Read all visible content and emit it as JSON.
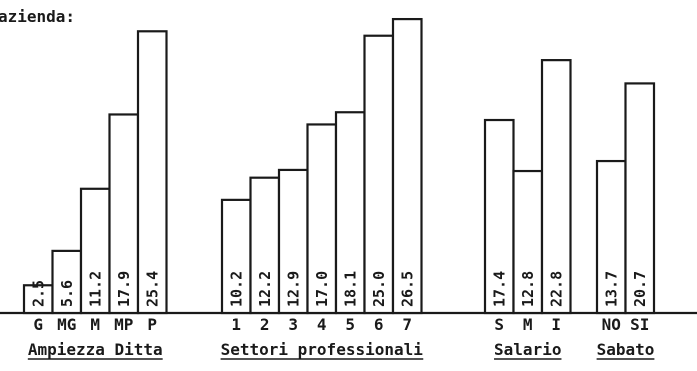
{
  "chart_data": {
    "type": "bar",
    "title": "azienda:",
    "groups": [
      {
        "name": "Ampiezza Ditta",
        "categories": [
          "G",
          "MG",
          "M",
          "MP",
          "P"
        ],
        "values": [
          2.5,
          5.6,
          11.2,
          17.9,
          25.4
        ],
        "labels": [
          "2.5",
          "5.6",
          "11.2",
          "17.9",
          "25.4"
        ]
      },
      {
        "name": "Settori professionali",
        "categories": [
          "1",
          "2",
          "3",
          "4",
          "5",
          "6",
          "7"
        ],
        "values": [
          10.2,
          12.2,
          12.9,
          17.0,
          18.1,
          25.0,
          26.5
        ],
        "labels": [
          "10.2",
          "12.2",
          "12.9",
          "17.0",
          "18.1",
          "25.0",
          "26.5"
        ]
      },
      {
        "name": "Salario",
        "categories": [
          "S",
          "M",
          "I"
        ],
        "values": [
          17.4,
          12.8,
          22.8
        ],
        "labels": [
          "17.4",
          "12.8",
          "22.8"
        ]
      },
      {
        "name": "Sabato",
        "categories": [
          "NO",
          "SI"
        ],
        "values": [
          13.7,
          20.7
        ],
        "labels": [
          "13.7",
          "20.7"
        ]
      }
    ],
    "ylim": [
      0,
      27.5
    ],
    "grid": false,
    "legend": "none"
  }
}
